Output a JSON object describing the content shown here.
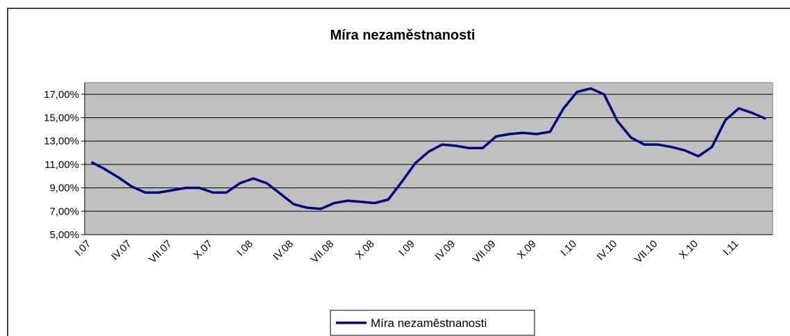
{
  "chart_data": {
    "type": "line",
    "title": "Míra nezaměstnanosti",
    "categories": [
      "I.07",
      null,
      null,
      "IV.07",
      null,
      null,
      "VII.07",
      null,
      null,
      "X.07",
      null,
      null,
      "I.08",
      null,
      null,
      "IV.08",
      null,
      null,
      "VII.08",
      null,
      null,
      "X.08",
      null,
      null,
      "I.09",
      null,
      null,
      "IV.09",
      null,
      null,
      "VII.09",
      null,
      null,
      "X.09",
      null,
      null,
      "I.10",
      null,
      null,
      "IV.10",
      null,
      null,
      "VII.10",
      null,
      null,
      "X.10",
      null,
      null,
      "I.11",
      null,
      null
    ],
    "series": [
      {
        "name": "Míra nezaměstnanosti",
        "color": "#000080",
        "values": [
          11.2,
          10.6,
          9.9,
          9.1,
          8.6,
          8.6,
          8.8,
          9.0,
          9.0,
          8.6,
          8.6,
          9.4,
          9.8,
          9.4,
          8.5,
          7.6,
          7.3,
          7.2,
          7.7,
          7.9,
          7.8,
          7.7,
          8.0,
          9.5,
          11.1,
          12.1,
          12.7,
          12.6,
          12.4,
          12.4,
          13.4,
          13.6,
          13.7,
          13.6,
          13.8,
          15.8,
          17.2,
          17.5,
          17.0,
          14.7,
          13.3,
          12.7,
          12.7,
          12.5,
          12.2,
          11.7,
          12.5,
          14.8,
          15.8,
          15.4,
          14.9
        ]
      }
    ],
    "ylim": [
      5,
      18
    ],
    "yticks": [
      {
        "value": 5,
        "label": "5,00%"
      },
      {
        "value": 7,
        "label": "7,00%"
      },
      {
        "value": 9,
        "label": "9,00%"
      },
      {
        "value": 11,
        "label": "11,00%"
      },
      {
        "value": 13,
        "label": "13,00%"
      },
      {
        "value": 15,
        "label": "15,00%"
      },
      {
        "value": 17,
        "label": "17,00%"
      }
    ],
    "grid": true,
    "legend": "bottom"
  }
}
